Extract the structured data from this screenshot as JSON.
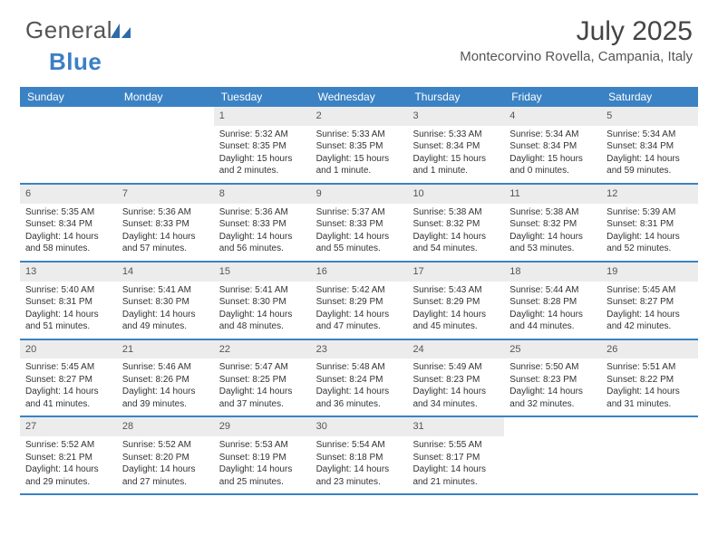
{
  "brand": {
    "part1": "General",
    "part2": "Blue"
  },
  "title": "July 2025",
  "location": "Montecorvino Rovella, Campania, Italy",
  "colors": {
    "header_bar": "#3b82c4",
    "day_number_bg": "#ececec",
    "text": "#333333",
    "brand_gray": "#555555",
    "brand_blue": "#3b7fc4"
  },
  "weekdays": [
    "Sunday",
    "Monday",
    "Tuesday",
    "Wednesday",
    "Thursday",
    "Friday",
    "Saturday"
  ],
  "weeks": [
    [
      {
        "n": "",
        "sunrise": "",
        "sunset": "",
        "daylight": ""
      },
      {
        "n": "",
        "sunrise": "",
        "sunset": "",
        "daylight": ""
      },
      {
        "n": "1",
        "sunrise": "Sunrise: 5:32 AM",
        "sunset": "Sunset: 8:35 PM",
        "daylight": "Daylight: 15 hours and 2 minutes."
      },
      {
        "n": "2",
        "sunrise": "Sunrise: 5:33 AM",
        "sunset": "Sunset: 8:35 PM",
        "daylight": "Daylight: 15 hours and 1 minute."
      },
      {
        "n": "3",
        "sunrise": "Sunrise: 5:33 AM",
        "sunset": "Sunset: 8:34 PM",
        "daylight": "Daylight: 15 hours and 1 minute."
      },
      {
        "n": "4",
        "sunrise": "Sunrise: 5:34 AM",
        "sunset": "Sunset: 8:34 PM",
        "daylight": "Daylight: 15 hours and 0 minutes."
      },
      {
        "n": "5",
        "sunrise": "Sunrise: 5:34 AM",
        "sunset": "Sunset: 8:34 PM",
        "daylight": "Daylight: 14 hours and 59 minutes."
      }
    ],
    [
      {
        "n": "6",
        "sunrise": "Sunrise: 5:35 AM",
        "sunset": "Sunset: 8:34 PM",
        "daylight": "Daylight: 14 hours and 58 minutes."
      },
      {
        "n": "7",
        "sunrise": "Sunrise: 5:36 AM",
        "sunset": "Sunset: 8:33 PM",
        "daylight": "Daylight: 14 hours and 57 minutes."
      },
      {
        "n": "8",
        "sunrise": "Sunrise: 5:36 AM",
        "sunset": "Sunset: 8:33 PM",
        "daylight": "Daylight: 14 hours and 56 minutes."
      },
      {
        "n": "9",
        "sunrise": "Sunrise: 5:37 AM",
        "sunset": "Sunset: 8:33 PM",
        "daylight": "Daylight: 14 hours and 55 minutes."
      },
      {
        "n": "10",
        "sunrise": "Sunrise: 5:38 AM",
        "sunset": "Sunset: 8:32 PM",
        "daylight": "Daylight: 14 hours and 54 minutes."
      },
      {
        "n": "11",
        "sunrise": "Sunrise: 5:38 AM",
        "sunset": "Sunset: 8:32 PM",
        "daylight": "Daylight: 14 hours and 53 minutes."
      },
      {
        "n": "12",
        "sunrise": "Sunrise: 5:39 AM",
        "sunset": "Sunset: 8:31 PM",
        "daylight": "Daylight: 14 hours and 52 minutes."
      }
    ],
    [
      {
        "n": "13",
        "sunrise": "Sunrise: 5:40 AM",
        "sunset": "Sunset: 8:31 PM",
        "daylight": "Daylight: 14 hours and 51 minutes."
      },
      {
        "n": "14",
        "sunrise": "Sunrise: 5:41 AM",
        "sunset": "Sunset: 8:30 PM",
        "daylight": "Daylight: 14 hours and 49 minutes."
      },
      {
        "n": "15",
        "sunrise": "Sunrise: 5:41 AM",
        "sunset": "Sunset: 8:30 PM",
        "daylight": "Daylight: 14 hours and 48 minutes."
      },
      {
        "n": "16",
        "sunrise": "Sunrise: 5:42 AM",
        "sunset": "Sunset: 8:29 PM",
        "daylight": "Daylight: 14 hours and 47 minutes."
      },
      {
        "n": "17",
        "sunrise": "Sunrise: 5:43 AM",
        "sunset": "Sunset: 8:29 PM",
        "daylight": "Daylight: 14 hours and 45 minutes."
      },
      {
        "n": "18",
        "sunrise": "Sunrise: 5:44 AM",
        "sunset": "Sunset: 8:28 PM",
        "daylight": "Daylight: 14 hours and 44 minutes."
      },
      {
        "n": "19",
        "sunrise": "Sunrise: 5:45 AM",
        "sunset": "Sunset: 8:27 PM",
        "daylight": "Daylight: 14 hours and 42 minutes."
      }
    ],
    [
      {
        "n": "20",
        "sunrise": "Sunrise: 5:45 AM",
        "sunset": "Sunset: 8:27 PM",
        "daylight": "Daylight: 14 hours and 41 minutes."
      },
      {
        "n": "21",
        "sunrise": "Sunrise: 5:46 AM",
        "sunset": "Sunset: 8:26 PM",
        "daylight": "Daylight: 14 hours and 39 minutes."
      },
      {
        "n": "22",
        "sunrise": "Sunrise: 5:47 AM",
        "sunset": "Sunset: 8:25 PM",
        "daylight": "Daylight: 14 hours and 37 minutes."
      },
      {
        "n": "23",
        "sunrise": "Sunrise: 5:48 AM",
        "sunset": "Sunset: 8:24 PM",
        "daylight": "Daylight: 14 hours and 36 minutes."
      },
      {
        "n": "24",
        "sunrise": "Sunrise: 5:49 AM",
        "sunset": "Sunset: 8:23 PM",
        "daylight": "Daylight: 14 hours and 34 minutes."
      },
      {
        "n": "25",
        "sunrise": "Sunrise: 5:50 AM",
        "sunset": "Sunset: 8:23 PM",
        "daylight": "Daylight: 14 hours and 32 minutes."
      },
      {
        "n": "26",
        "sunrise": "Sunrise: 5:51 AM",
        "sunset": "Sunset: 8:22 PM",
        "daylight": "Daylight: 14 hours and 31 minutes."
      }
    ],
    [
      {
        "n": "27",
        "sunrise": "Sunrise: 5:52 AM",
        "sunset": "Sunset: 8:21 PM",
        "daylight": "Daylight: 14 hours and 29 minutes."
      },
      {
        "n": "28",
        "sunrise": "Sunrise: 5:52 AM",
        "sunset": "Sunset: 8:20 PM",
        "daylight": "Daylight: 14 hours and 27 minutes."
      },
      {
        "n": "29",
        "sunrise": "Sunrise: 5:53 AM",
        "sunset": "Sunset: 8:19 PM",
        "daylight": "Daylight: 14 hours and 25 minutes."
      },
      {
        "n": "30",
        "sunrise": "Sunrise: 5:54 AM",
        "sunset": "Sunset: 8:18 PM",
        "daylight": "Daylight: 14 hours and 23 minutes."
      },
      {
        "n": "31",
        "sunrise": "Sunrise: 5:55 AM",
        "sunset": "Sunset: 8:17 PM",
        "daylight": "Daylight: 14 hours and 21 minutes."
      },
      {
        "n": "",
        "sunrise": "",
        "sunset": "",
        "daylight": ""
      },
      {
        "n": "",
        "sunrise": "",
        "sunset": "",
        "daylight": ""
      }
    ]
  ]
}
